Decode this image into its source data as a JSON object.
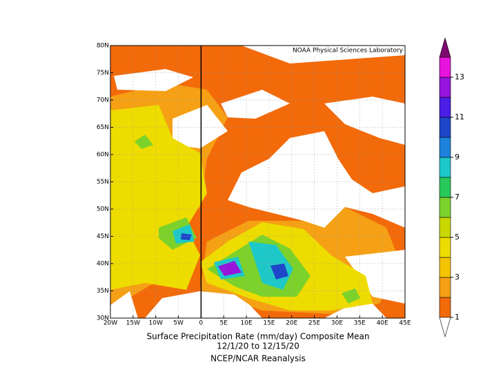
{
  "map": {
    "label": "NOAA Physical Sciences Laboratory",
    "lon_ticks": [
      "20W",
      "15W",
      "10W",
      "5W",
      "0",
      "5E",
      "10E",
      "15E",
      "20E",
      "25E",
      "30E",
      "35E",
      "40E",
      "45E"
    ],
    "lat_ticks": [
      "80N",
      "75N",
      "70N",
      "65N",
      "60N",
      "55N",
      "50N",
      "45N",
      "40N",
      "35N",
      "30N"
    ],
    "caption": [
      "Surface Precipitation Rate (mm/day) Composite Mean",
      "12/1/20  to 12/15/20",
      "NCEP/NCAR Reanalysis"
    ],
    "colorbar": {
      "ticks": [
        1,
        3,
        5,
        7,
        9,
        11,
        13
      ],
      "colors": [
        "#f26a0a",
        "#f5a015",
        "#f5c400",
        "#eedc00",
        "#c8d800",
        "#7cd22a",
        "#28c85a",
        "#1ec8c8",
        "#1e82dc",
        "#1e46c8",
        "#4b1ee6",
        "#9614dc",
        "#e614dc"
      ],
      "over_color": "#7d0a6e"
    }
  }
}
